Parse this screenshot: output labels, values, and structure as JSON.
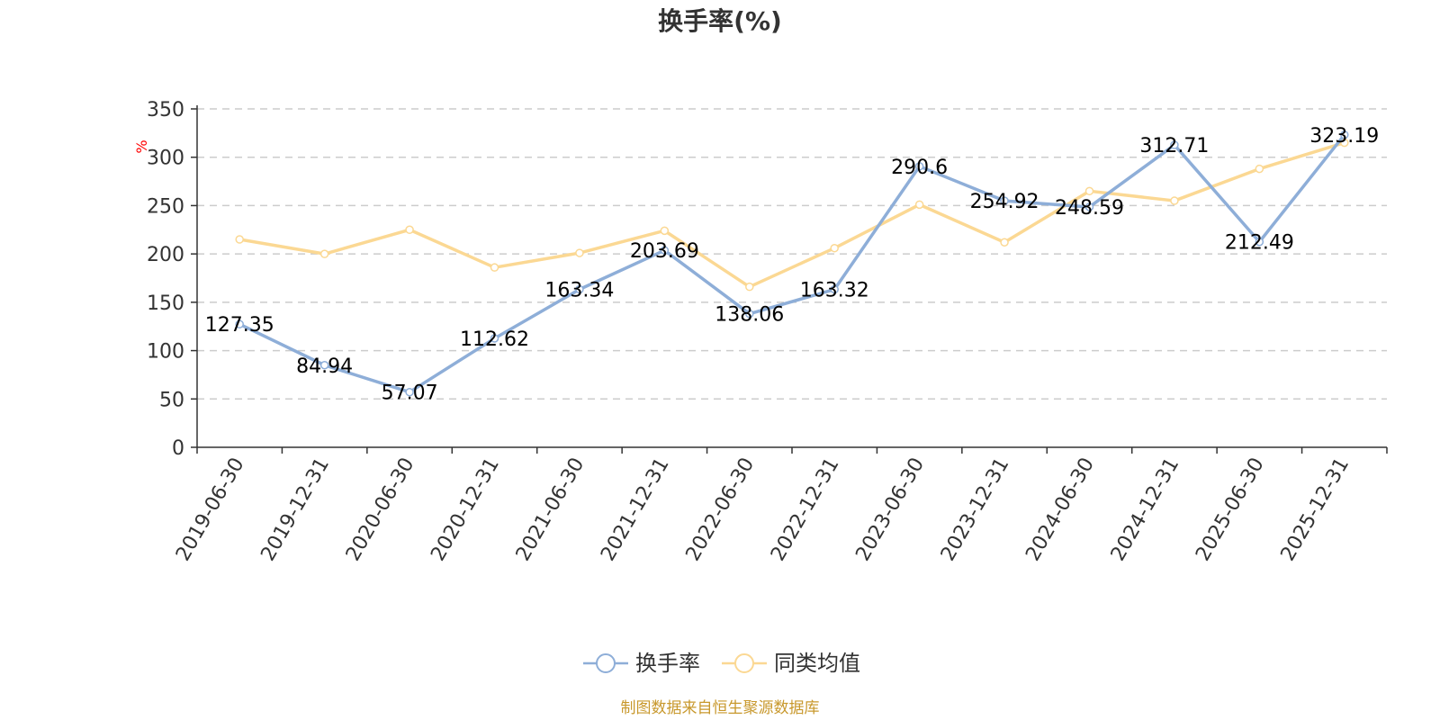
{
  "chart_data": {
    "type": "line",
    "title": "换手率(%)",
    "unit_label": "%",
    "categories": [
      "2019-06-30",
      "2019-12-31",
      "2020-06-30",
      "2020-12-31",
      "2021-06-30",
      "2021-12-31",
      "2022-06-30",
      "2022-12-31",
      "2023-06-30",
      "2023-12-31",
      "2024-06-30",
      "2024-12-31",
      "2025-06-30",
      "2025-12-31"
    ],
    "ylim": [
      0,
      350
    ],
    "yticks": [
      0,
      50,
      100,
      150,
      200,
      250,
      300,
      350
    ],
    "grid": true,
    "legend_position": "bottom-center",
    "series": [
      {
        "name": "换手率",
        "color": "#8eaed8",
        "values": [
          127.35,
          84.94,
          57.07,
          112.62,
          163.34,
          203.69,
          138.06,
          163.32,
          290.6,
          254.92,
          248.59,
          312.71,
          212.49,
          323.19
        ],
        "labels": [
          "127.35",
          "84.94",
          "57.07",
          "112.62",
          "163.34",
          "203.69",
          "138.06",
          "163.32",
          "290.6",
          "254.92",
          "248.59",
          "312.71",
          "212.49",
          "323.19"
        ]
      },
      {
        "name": "同类均值",
        "color": "#fbd893",
        "values": [
          215,
          200,
          225,
          186,
          201,
          224,
          166,
          206,
          251,
          212,
          265,
          255,
          288,
          315
        ]
      }
    ]
  },
  "source_note": "制图数据来自恒生聚源数据库"
}
